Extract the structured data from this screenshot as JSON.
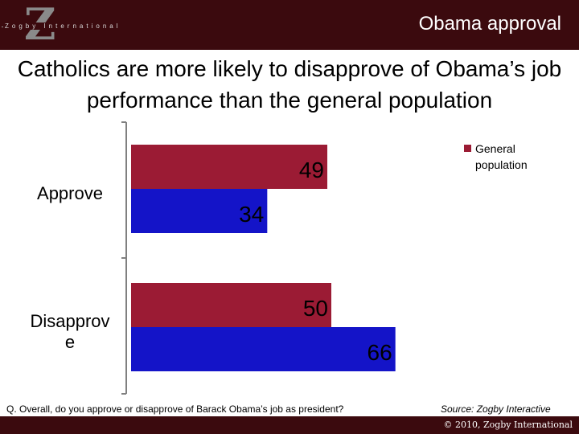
{
  "header": {
    "logo_letter": "Z",
    "logo_text": "Zogby International",
    "slide_label": "Obama approval"
  },
  "title": "Catholics are more likely to disapprove of Obama’s job performance than the general population",
  "legend": {
    "items": [
      {
        "label": "General population",
        "color": "#9b1b34"
      }
    ]
  },
  "chart_data": {
    "type": "bar",
    "orientation": "horizontal",
    "categories": [
      "Approve",
      "Disapprov e"
    ],
    "series": [
      {
        "name": "General population",
        "color": "#9b1b34",
        "values": [
          49,
          50
        ]
      },
      {
        "color": "#1414c8",
        "values": [
          34,
          66
        ]
      }
    ],
    "xlim": [
      0,
      100
    ],
    "grid": false,
    "legend_position": "right"
  },
  "footer": {
    "question": "Q.  Overall, do you approve or disapprove of Barack Obama’s job as president?",
    "source": "Source: Zogby Interactive",
    "copyright": "© 2010, Zogby International"
  }
}
